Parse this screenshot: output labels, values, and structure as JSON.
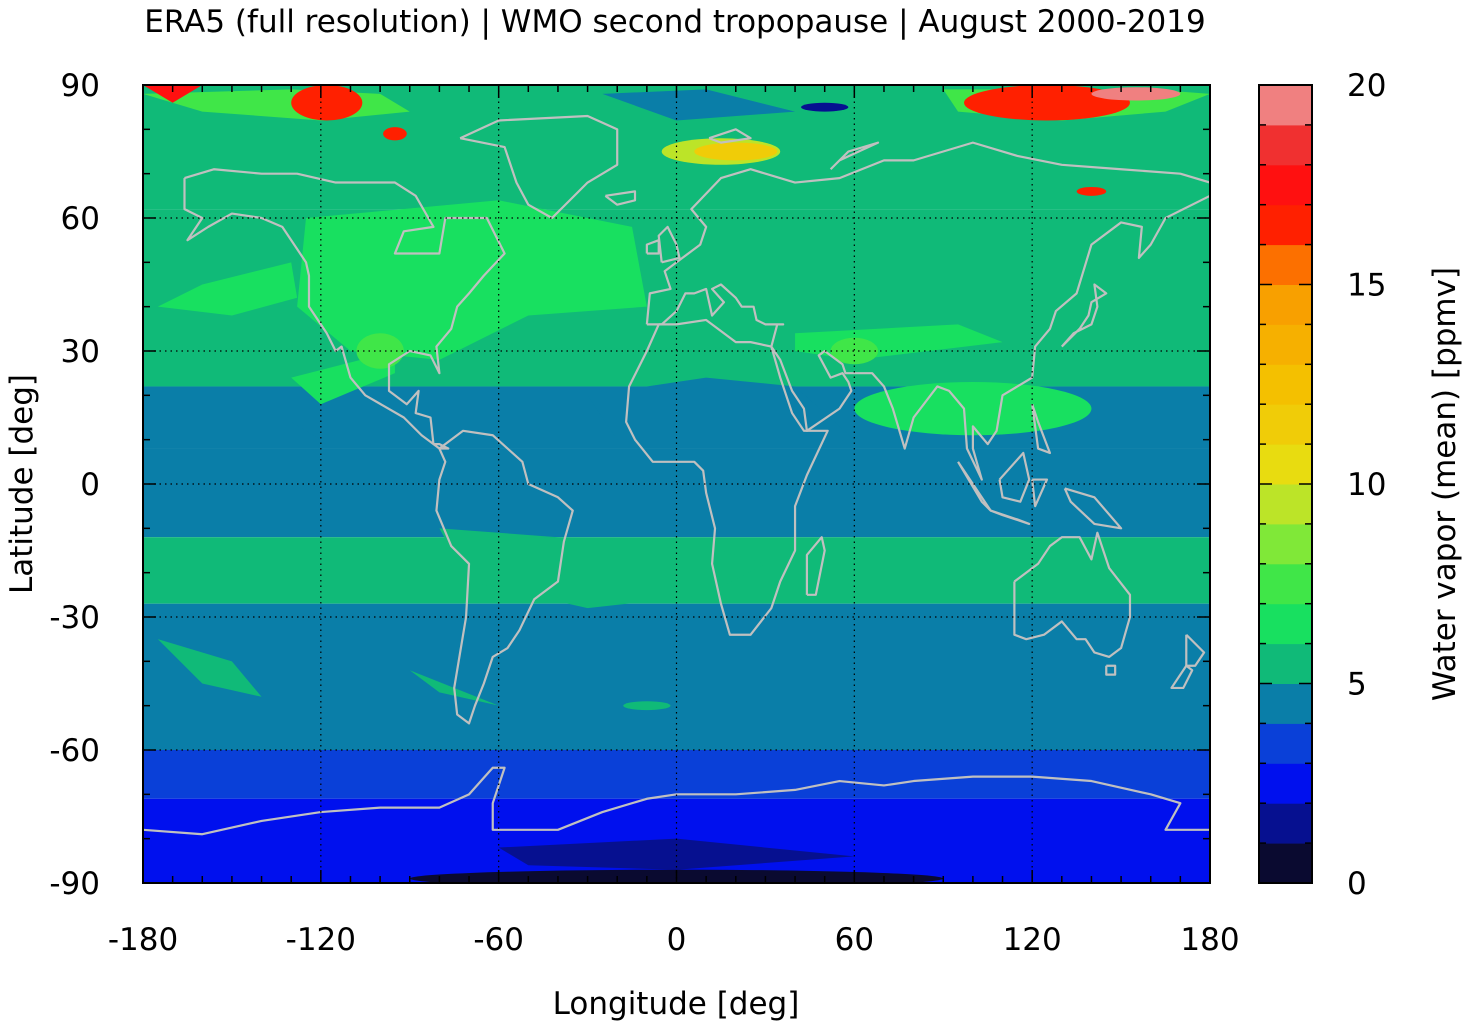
{
  "title": "ERA5 (full resolution) | WMO second tropopause | August 2000-2019",
  "map": {
    "xaxis": {
      "label": "Longitude [deg]",
      "min": -180,
      "max": 180,
      "ticks": [
        -180,
        -120,
        -60,
        0,
        60,
        120,
        180
      ],
      "tick_labels": [
        "-180",
        "-120",
        "-60",
        "0",
        "60",
        "120",
        "180"
      ],
      "minor_step": 10
    },
    "yaxis": {
      "label": "Latitude [deg]",
      "min": -90,
      "max": 90,
      "ticks": [
        -90,
        -60,
        -30,
        0,
        30,
        60,
        90
      ],
      "tick_labels": [
        "-90",
        "-60",
        "-30",
        "0",
        "30",
        "60",
        "90"
      ],
      "minor_step": 10
    },
    "grid": "dotted at major ticks",
    "coastline_color": "#c0c0c0"
  },
  "colorbar": {
    "label": "Water vapor (mean) [ppmv]",
    "min": 0,
    "max": 20,
    "step": 1,
    "tick_values": [
      0,
      5,
      10,
      15,
      20
    ],
    "tick_labels": [
      "0",
      "5",
      "10",
      "15",
      "20"
    ],
    "colors": [
      "#0a0a30",
      "#061090",
      "#0010ee",
      "#0a40d8",
      "#0a7ea8",
      "#10ba78",
      "#18e060",
      "#40e648",
      "#80e838",
      "#bce428",
      "#e8dc10",
      "#f0cc08",
      "#f4c000",
      "#f6b000",
      "#f8a000",
      "#fc7000",
      "#ff2000",
      "#ff1010",
      "#f03030",
      "#f08080",
      "#ffcccc"
    ]
  }
}
